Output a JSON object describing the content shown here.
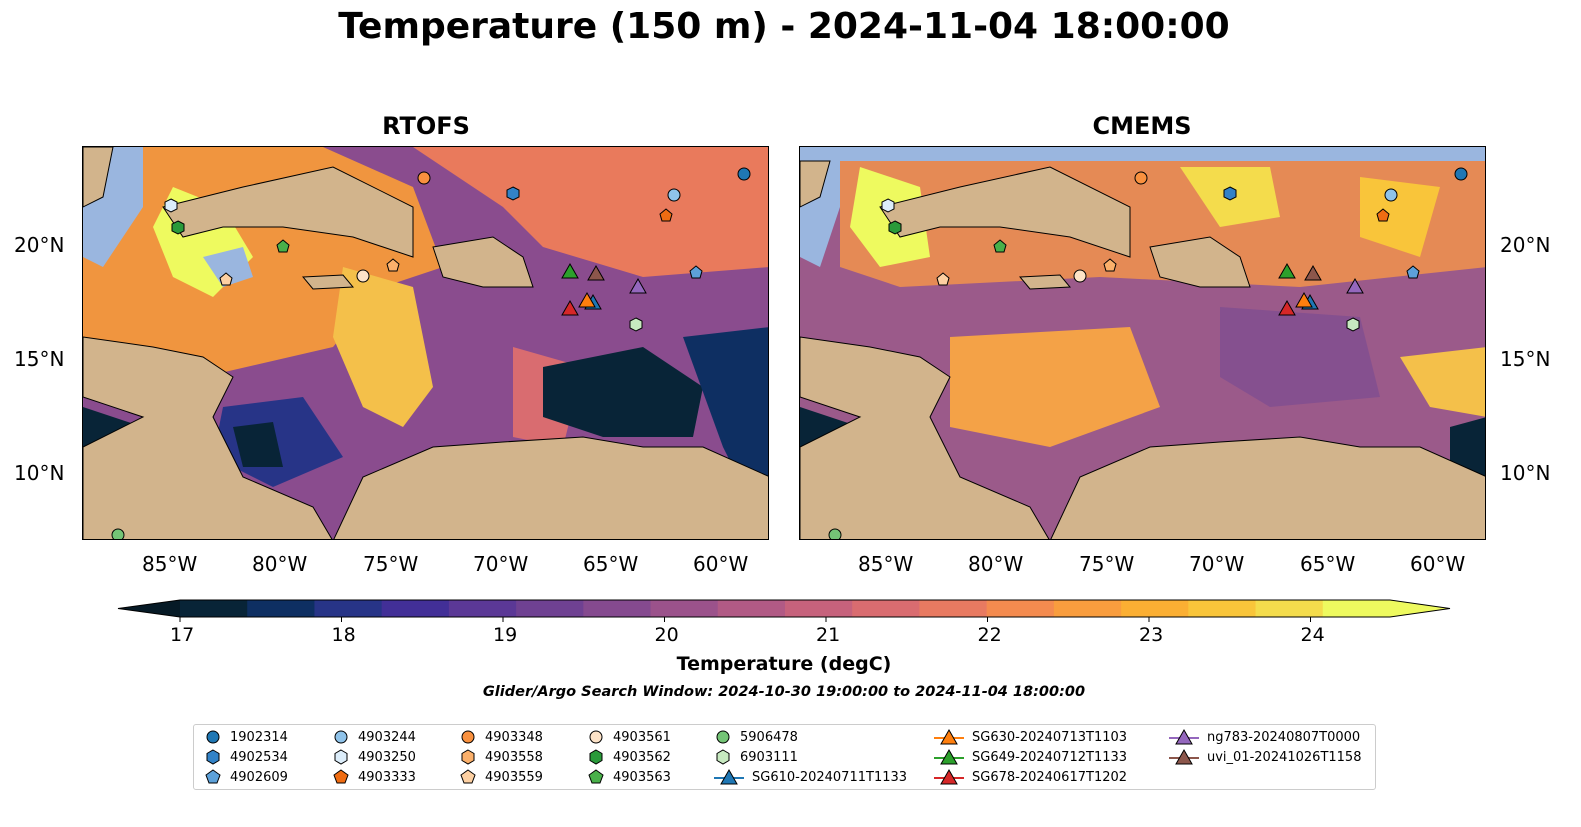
{
  "title": "Temperature (150 m) - 2024-11-04 18:00:00",
  "panels": [
    {
      "title": "RTOFS"
    },
    {
      "title": "CMEMS"
    }
  ],
  "lon_ticks": [
    "85°W",
    "80°W",
    "75°W",
    "70°W",
    "65°W",
    "60°W"
  ],
  "lat_ticks": [
    "20°N",
    "15°N",
    "10°N"
  ],
  "colorbar": {
    "label": "Temperature (degC)",
    "ticks": [
      "17",
      "18",
      "19",
      "20",
      "21",
      "22",
      "23",
      "24"
    ],
    "colors": [
      "#082437",
      "#0e2f62",
      "#273487",
      "#422f97",
      "#5b3896",
      "#6f4192",
      "#854a8f",
      "#9b528b",
      "#b15a85",
      "#c6627c",
      "#d96c70",
      "#e87a61",
      "#f48b4f",
      "#f99d3e",
      "#fbaf33",
      "#f9c53a",
      "#f4dc4c",
      "#eefa5f"
    ],
    "under_color": "#061a26",
    "over_color": "#eefa5f"
  },
  "search_window": "Glider/Argo Search Window: 2024-10-30 19:00:00 to 2024-11-04 18:00:00",
  "map_colors": {
    "land": "#d2b48c",
    "shelf": "#9ab6df",
    "deep": "#082437",
    "warm": "#f7a53c",
    "hot": "#f0f064",
    "mid": "#7a4793"
  },
  "legend": [
    {
      "label": "1902314",
      "marker": "circle",
      "color": "#1f77b4"
    },
    {
      "label": "4902534",
      "marker": "hexagon",
      "color": "#3282c7"
    },
    {
      "label": "4902609",
      "marker": "pentagon",
      "color": "#5da1d9"
    },
    {
      "label": "4903244",
      "marker": "circle",
      "color": "#8fc3ea"
    },
    {
      "label": "4903250",
      "marker": "hexagon",
      "color": "#dcedfa"
    },
    {
      "label": "4903333",
      "marker": "pentagon",
      "color": "#ef6c12"
    },
    {
      "label": "4903348",
      "marker": "circle",
      "color": "#f9913f"
    },
    {
      "label": "4903558",
      "marker": "hexagon",
      "color": "#fbb06b"
    },
    {
      "label": "4903559",
      "marker": "pentagon",
      "color": "#fdd0a2"
    },
    {
      "label": "4903561",
      "marker": "circle",
      "color": "#fde3c8"
    },
    {
      "label": "4903562",
      "marker": "hexagon",
      "color": "#2a9a3a"
    },
    {
      "label": "4903563",
      "marker": "pentagon",
      "color": "#49b04a"
    },
    {
      "label": "5906478",
      "marker": "circle",
      "color": "#74c476"
    },
    {
      "label": "6903111",
      "marker": "hexagon",
      "color": "#c7e9c0"
    },
    {
      "label": "SG610-20240711T1133",
      "marker": "triangle-line",
      "color": "#1f77b4"
    },
    {
      "label": "SG630-20240713T1103",
      "marker": "triangle-line",
      "color": "#ff7f0e"
    },
    {
      "label": "SG649-20240712T1133",
      "marker": "triangle-line",
      "color": "#2ca02c"
    },
    {
      "label": "SG678-20240617T1202",
      "marker": "triangle-line",
      "color": "#d62728"
    },
    {
      "label": "ng783-20240807T0000",
      "marker": "triangle-line",
      "color": "#9467bd"
    },
    {
      "label": "uvi_01-20241026T1158",
      "marker": "triangle-line",
      "color": "#8c564b"
    }
  ]
}
